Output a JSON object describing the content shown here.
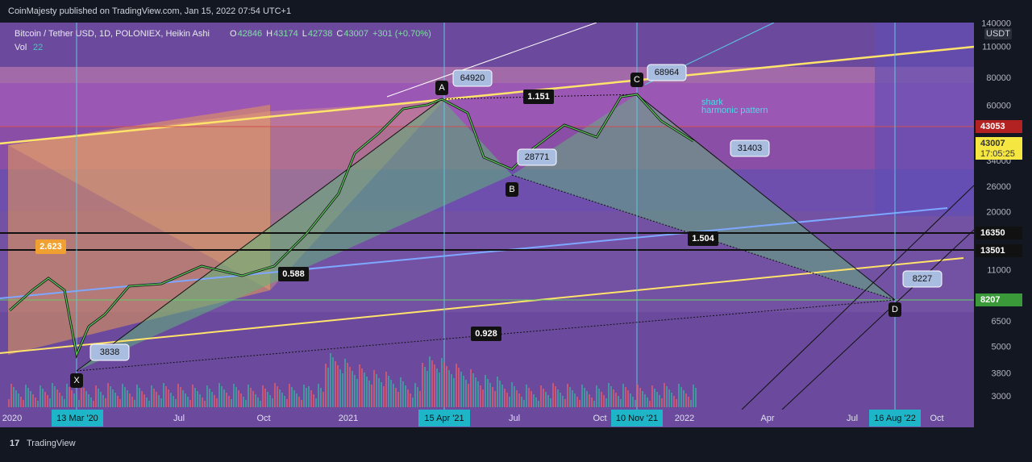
{
  "header": {
    "publisher": "CoinMajesty published on TradingView.com, Jan 15, 2022 07:54 UTC+1"
  },
  "legend": {
    "symbol": "Bitcoin / Tether USD, 1D, POLONIEX, Heikin Ashi",
    "ohlc": [
      {
        "label": "O",
        "value": 42846
      },
      {
        "label": "H",
        "value": 43174
      },
      {
        "label": "L",
        "value": 42738
      },
      {
        "label": "C",
        "value": 43007
      }
    ],
    "change": "+301 (+0.70%)",
    "volume_label": "Vol",
    "volume": 22
  },
  "price_axis": {
    "currency": "USDT",
    "ticks": [
      140000,
      110000,
      80000,
      60000,
      34000,
      26000,
      20000,
      11000,
      6500,
      5000,
      3800,
      3000
    ],
    "badges": [
      {
        "value": 43053
      },
      {
        "value": 43007,
        "timer": "17:05:25"
      },
      {
        "value": 16350
      },
      {
        "value": 13501
      },
      {
        "value": 8207
      }
    ]
  },
  "time_axis": {
    "labels": [
      "2020",
      "13 Mar '20",
      "Jul",
      "Oct",
      "2021",
      "15 Apr '21",
      "Jul",
      "Oct",
      "10 Nov '21",
      "2022",
      "Apr",
      "Jul",
      "16 Aug '22",
      "Oct"
    ]
  },
  "annotations": {
    "points": [
      "X",
      "A",
      "B",
      "C",
      "D"
    ],
    "prices": [
      3838,
      64920,
      28771,
      68964,
      31403,
      8227
    ],
    "ratios": [
      "1.151",
      "1.504",
      "0.588",
      "0.928",
      "2.623"
    ],
    "pattern": [
      "shark",
      "harmonic pattern"
    ]
  },
  "footer": {
    "brand": "TradingView"
  }
}
